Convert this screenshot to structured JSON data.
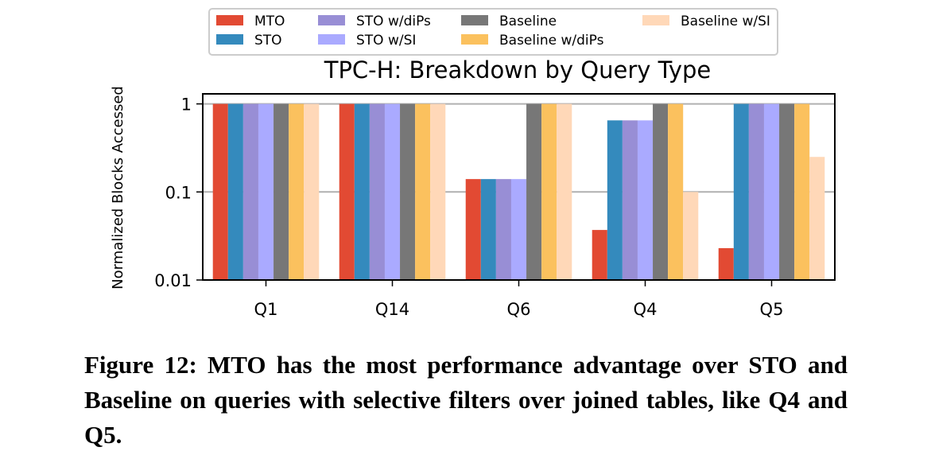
{
  "chart_data": {
    "type": "bar",
    "title": "TPC-H: Breakdown by Query Type",
    "xlabel": "",
    "ylabel": "Normalized Blocks Accessed",
    "yscale": "log",
    "ylim": [
      0.01,
      1.3
    ],
    "yticks": [
      0.01,
      0.1,
      1
    ],
    "ytick_labels": [
      "0.01",
      "0.1",
      "1"
    ],
    "grid": "horizontal lines at y-ticks",
    "legend_position": "top",
    "categories": [
      "Q1",
      "Q14",
      "Q6",
      "Q4",
      "Q5"
    ],
    "series": [
      {
        "name": "MTO",
        "color": "#e24a33",
        "values": [
          1,
          1,
          0.14,
          0.037,
          0.023
        ]
      },
      {
        "name": "STO",
        "color": "#348abd",
        "values": [
          1,
          1,
          0.14,
          0.65,
          1
        ]
      },
      {
        "name": "STO w/diPs",
        "color": "#988ed5",
        "values": [
          1,
          1,
          0.14,
          0.65,
          1
        ]
      },
      {
        "name": "STO w/SI",
        "color": "#aaaaff",
        "values": [
          1,
          1,
          0.14,
          0.65,
          1
        ]
      },
      {
        "name": "Baseline",
        "color": "#777777",
        "values": [
          1,
          1,
          1,
          1,
          1
        ]
      },
      {
        "name": "Baseline w/diPs",
        "color": "#fbc15e",
        "values": [
          1,
          1,
          1,
          1,
          1
        ]
      },
      {
        "name": "Baseline w/SI",
        "color": "#ffd8b8",
        "values": [
          1,
          1,
          1,
          0.1,
          0.25
        ]
      }
    ]
  },
  "caption": "Figure 12: MTO has the most performance advantage over STO and Baseline on queries with selective filters over joined tables, like Q4 and Q5."
}
